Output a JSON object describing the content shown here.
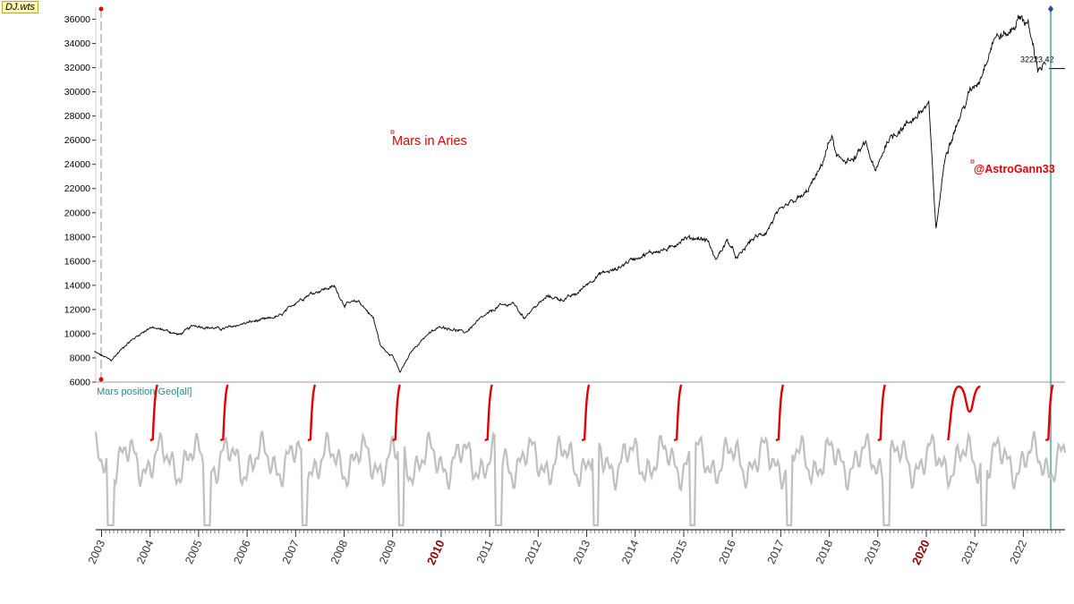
{
  "window": {
    "title": "DJ.wts"
  },
  "chart_data": [
    {
      "type": "line",
      "title": "DJ.wts",
      "ylim": [
        6000,
        37000
      ],
      "y_ticks": [
        6000,
        8000,
        10000,
        12000,
        14000,
        16000,
        18000,
        20000,
        22000,
        24000,
        26000,
        28000,
        30000,
        32000,
        34000,
        36000
      ],
      "last_value_label": "32223.42",
      "annotations": [
        "Mars in Aries",
        "@AstroGann33"
      ],
      "series": [
        {
          "color": "#000000",
          "x": [
            2002.85,
            2003.0,
            2003.2,
            2003.5,
            2003.8,
            2004.0,
            2004.3,
            2004.6,
            2004.9,
            2005.2,
            2005.5,
            2005.8,
            2006.1,
            2006.4,
            2006.7,
            2007.0,
            2007.3,
            2007.6,
            2007.8,
            2008.0,
            2008.3,
            2008.6,
            2008.75,
            2008.85,
            2009.0,
            2009.15,
            2009.4,
            2009.7,
            2010.0,
            2010.3,
            2010.5,
            2010.8,
            2011.2,
            2011.5,
            2011.7,
            2011.9,
            2012.2,
            2012.5,
            2012.8,
            2013.0,
            2013.3,
            2013.6,
            2013.9,
            2014.1,
            2014.4,
            2014.7,
            2015.0,
            2015.3,
            2015.5,
            2015.65,
            2015.9,
            2016.1,
            2016.4,
            2016.7,
            2016.9,
            2017.2,
            2017.5,
            2017.8,
            2018.05,
            2018.15,
            2018.5,
            2018.75,
            2018.95,
            2019.2,
            2019.5,
            2019.8,
            2020.05,
            2020.2,
            2020.4,
            2020.7,
            2020.9,
            2021.1,
            2021.4,
            2021.7,
            2021.95,
            2022.1,
            2022.3,
            2022.46
          ],
          "y": [
            8500,
            8200,
            7800,
            9100,
            10000,
            10500,
            10300,
            9900,
            10700,
            10500,
            10400,
            10700,
            11000,
            11200,
            11500,
            12600,
            13300,
            13700,
            13900,
            12400,
            12700,
            11300,
            9000,
            8600,
            8200,
            6800,
            8600,
            9900,
            10600,
            10300,
            10100,
            11200,
            12300,
            12500,
            11300,
            12100,
            13100,
            12800,
            13300,
            14100,
            15000,
            15300,
            16100,
            16400,
            16800,
            17000,
            17900,
            17900,
            17700,
            16100,
            17700,
            16200,
            17800,
            18400,
            19800,
            20800,
            21500,
            23500,
            26400,
            24500,
            24300,
            25800,
            23300,
            26000,
            27000,
            28000,
            29000,
            18600,
            25000,
            28000,
            30000,
            31000,
            34500,
            34800,
            36300,
            35500,
            32000,
            32223
          ]
        }
      ]
    },
    {
      "type": "line",
      "title": "Mars position Geo[all]",
      "x_ticks": [
        "2003",
        "2004",
        "2005",
        "2006",
        "2007",
        "2008",
        "2009",
        "2010",
        "2011",
        "2012",
        "2013",
        "2014",
        "2015",
        "2016",
        "2017",
        "2018",
        "2019",
        "2020",
        "2021",
        "2022"
      ],
      "highlighted_ticks": [
        "2010",
        "2020"
      ],
      "series": [
        {
          "color": "#c0c0c0"
        },
        {
          "color": "#e00000"
        }
      ]
    }
  ]
}
